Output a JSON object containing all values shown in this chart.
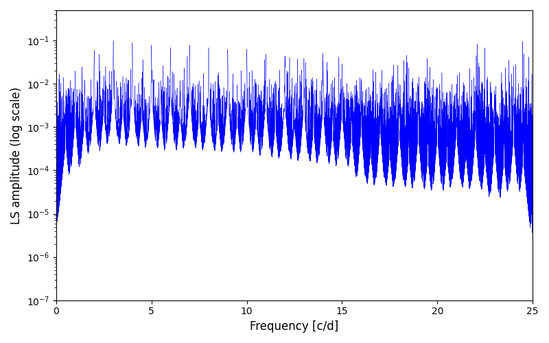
{
  "xlabel": "Frequency [c/d]",
  "ylabel": "LS amplitude (log scale)",
  "color": "#0000ff",
  "xlim": [
    0,
    25
  ],
  "ylim": [
    1e-07,
    0.5
  ],
  "figsize": [
    8.0,
    5.0
  ],
  "dpi": 100,
  "background": "#ffffff",
  "seed": 137,
  "n_points": 25000,
  "freq_max": 25.0,
  "base_log_mean": -4.0,
  "base_log_std": 0.8,
  "linewidth": 0.3,
  "xticks": [
    0,
    5,
    10,
    15,
    20,
    25
  ],
  "xlabel_fontsize": 12,
  "ylabel_fontsize": 12,
  "peak_heights": [
    0.02,
    0.06,
    0.1,
    0.09,
    0.08,
    0.07,
    0.08,
    0.07,
    0.065,
    0.065,
    0.05,
    0.045,
    0.04,
    0.035,
    0.03,
    0.012,
    0.011,
    0.01,
    0.009,
    0.008,
    0.01,
    0.009,
    0.005,
    0.008
  ]
}
